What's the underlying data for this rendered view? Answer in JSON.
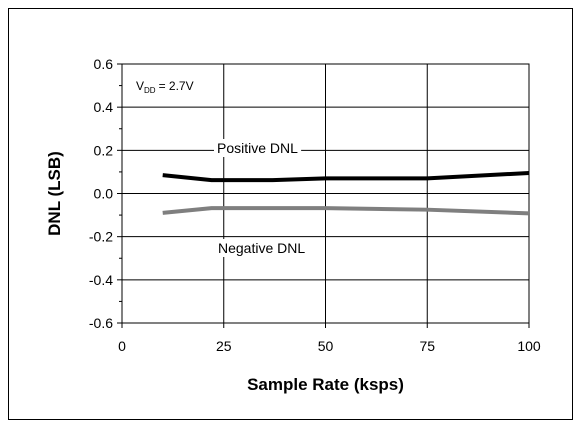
{
  "chart_data": {
    "type": "line",
    "xlabel": "Sample Rate (ksps)",
    "ylabel": "DNL (LSB)",
    "xlim": [
      0,
      100
    ],
    "ylim": [
      -0.6,
      0.6
    ],
    "x_ticks": [
      "0",
      "25",
      "50",
      "75",
      "100"
    ],
    "y_ticks": [
      "0.6",
      "0.4",
      "0.2",
      "0.0",
      "-0.2",
      "-0.4",
      "-0.6"
    ],
    "grid": true,
    "condition": {
      "symbol": "V",
      "subscript": "DD",
      "value": "= 2.7V"
    },
    "series": [
      {
        "name": "Positive DNL",
        "color": "#000000",
        "x": [
          10,
          22,
          37,
          50,
          75,
          100
        ],
        "y": [
          0.085,
          0.062,
          0.062,
          0.07,
          0.07,
          0.095
        ]
      },
      {
        "name": "Negative DNL",
        "color": "#7f7f7f",
        "x": [
          10,
          22,
          37,
          50,
          75,
          100
        ],
        "y": [
          -0.09,
          -0.068,
          -0.068,
          -0.068,
          -0.075,
          -0.092
        ]
      }
    ]
  }
}
